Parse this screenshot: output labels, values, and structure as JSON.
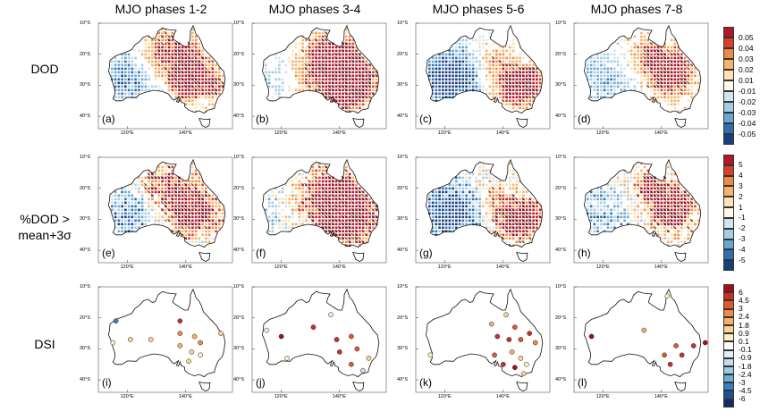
{
  "columns": [
    "MJO phases 1-2",
    "MJO phases 3-4",
    "MJO phases 5-6",
    "MJO phases 7-8"
  ],
  "rows": [
    {
      "label": "DOD",
      "panels": [
        "(a)",
        "(b)",
        "(c)",
        "(d)"
      ],
      "colorbar": {
        "labels": [
          "0.05",
          "0.04",
          "0.03",
          "0.02",
          "0.01",
          "-0.01",
          "-0.02",
          "-0.03",
          "-0.04",
          "-0.05"
        ],
        "colors": [
          "#b2182b",
          "#d6402d",
          "#ef8a44",
          "#f7b36b",
          "#fde4b8",
          "#fffbe8",
          "#d1e5f0",
          "#a6cce3",
          "#6aa6d1",
          "#2f6fb0",
          "#183f7e"
        ]
      }
    },
    {
      "label_lines": [
        "%DOD >",
        "mean+3σ"
      ],
      "panels": [
        "(e)",
        "(f)",
        "(g)",
        "(h)"
      ],
      "colorbar": {
        "labels": [
          "5",
          "4",
          "3",
          "2",
          "1",
          "-1",
          "-2",
          "-3",
          "-4",
          "-5"
        ],
        "colors": [
          "#b2182b",
          "#d6402d",
          "#ef8a44",
          "#f7b36b",
          "#fde4b8",
          "#fffbe8",
          "#d1e5f0",
          "#a6cce3",
          "#6aa6d1",
          "#2f6fb0",
          "#183f7e"
        ]
      }
    },
    {
      "label": "DSI",
      "panels": [
        "(i)",
        "(j)",
        "(k)",
        "(l)"
      ],
      "colorbar": {
        "labels": [
          "6",
          "4.5",
          "3",
          "2.4",
          "1.8",
          "0.9",
          "0.1",
          "-0.1",
          "-0.9",
          "-1.8",
          "-2.4",
          "-3",
          "-4.5",
          "-6"
        ],
        "colors": [
          "#a50f15",
          "#c9302c",
          "#e05a30",
          "#f08a4b",
          "#f7b06b",
          "#fbd38e",
          "#fdeec0",
          "#ffffff",
          "#e4eef6",
          "#c6dbef",
          "#9ecae1",
          "#6baed6",
          "#3a7fbd",
          "#1f4f95",
          "#102a6b"
        ]
      }
    }
  ],
  "axes": {
    "lat_ticks": [
      "10°S",
      "20°S",
      "30°S",
      "40°S"
    ],
    "lon_ticks": [
      "120°E",
      "140°E"
    ]
  },
  "map_colors": {
    "land_outline": "#111111",
    "positive": "#e06a2c",
    "negative": "#7fb0d8",
    "hatch": "#1a1a1a"
  },
  "dsi_stations": {
    "(i)": [
      {
        "lon": 116,
        "lat": -21,
        "v": -4.5
      },
      {
        "lon": 138,
        "lat": -21,
        "v": 4.5
      },
      {
        "lon": 115,
        "lat": -28,
        "v": 0.1
      },
      {
        "lon": 121,
        "lat": -27,
        "v": 0.9
      },
      {
        "lon": 128,
        "lat": -27,
        "v": 0.9
      },
      {
        "lon": 138,
        "lat": -25,
        "v": 2.4
      },
      {
        "lon": 143,
        "lat": -26,
        "v": 1.8
      },
      {
        "lon": 145,
        "lat": -28,
        "v": 2.4
      },
      {
        "lon": 138,
        "lat": -29,
        "v": 1.8
      },
      {
        "lon": 142,
        "lat": -31,
        "v": 0.9
      },
      {
        "lon": 145,
        "lat": -32,
        "v": 0.1
      },
      {
        "lon": 141,
        "lat": -34,
        "v": 0.9
      },
      {
        "lon": 152,
        "lat": -25,
        "v": 0.9
      }
    ],
    "(j)": [
      {
        "lon": 115,
        "lat": -24,
        "v": -0.9
      },
      {
        "lon": 120,
        "lat": -26,
        "v": 6
      },
      {
        "lon": 131,
        "lat": -23,
        "v": 4.5
      },
      {
        "lon": 137,
        "lat": -19,
        "v": -0.9
      },
      {
        "lon": 139,
        "lat": -27,
        "v": 4.5
      },
      {
        "lon": 144,
        "lat": -26,
        "v": 3
      },
      {
        "lon": 140,
        "lat": -31,
        "v": 4.5
      },
      {
        "lon": 146,
        "lat": -30,
        "v": 3
      },
      {
        "lon": 144,
        "lat": -35,
        "v": 3
      },
      {
        "lon": 150,
        "lat": -33,
        "v": 0.9
      },
      {
        "lon": 148,
        "lat": -37,
        "v": -1.8
      },
      {
        "lon": 122,
        "lat": -33,
        "v": 0.1
      }
    ],
    "(k)": [
      {
        "lon": 115,
        "lat": -32,
        "v": 0.1
      },
      {
        "lon": 136,
        "lat": -22,
        "v": 1.8
      },
      {
        "lon": 141,
        "lat": -19,
        "v": 0.9
      },
      {
        "lon": 144,
        "lat": -23,
        "v": 3
      },
      {
        "lon": 138,
        "lat": -26,
        "v": 4.5
      },
      {
        "lon": 142,
        "lat": -27,
        "v": 4.5
      },
      {
        "lon": 146,
        "lat": -27,
        "v": 3
      },
      {
        "lon": 149,
        "lat": -25,
        "v": 4.5
      },
      {
        "lon": 151,
        "lat": -28,
        "v": 2.4
      },
      {
        "lon": 137,
        "lat": -32,
        "v": 3
      },
      {
        "lon": 143,
        "lat": -31,
        "v": 1.8
      },
      {
        "lon": 146,
        "lat": -33,
        "v": 0.9
      },
      {
        "lon": 140,
        "lat": -35,
        "v": 4.5
      },
      {
        "lon": 144,
        "lat": -36,
        "v": 6
      },
      {
        "lon": 148,
        "lat": -35,
        "v": 0.1
      },
      {
        "lon": 147,
        "lat": -38,
        "v": 0.9
      }
    ],
    "(l)": [
      {
        "lon": 116,
        "lat": -26,
        "v": 6
      },
      {
        "lon": 134,
        "lat": -24,
        "v": 1.8
      },
      {
        "lon": 142,
        "lat": -13,
        "v": 0.1
      },
      {
        "lon": 145,
        "lat": -29,
        "v": 3
      },
      {
        "lon": 141,
        "lat": -32,
        "v": 3
      },
      {
        "lon": 147,
        "lat": -32,
        "v": 4.5
      },
      {
        "lon": 151,
        "lat": -29,
        "v": 4.5
      },
      {
        "lon": 155,
        "lat": -28,
        "v": 6
      },
      {
        "lon": 143,
        "lat": -35,
        "v": 4.5
      }
    ]
  }
}
